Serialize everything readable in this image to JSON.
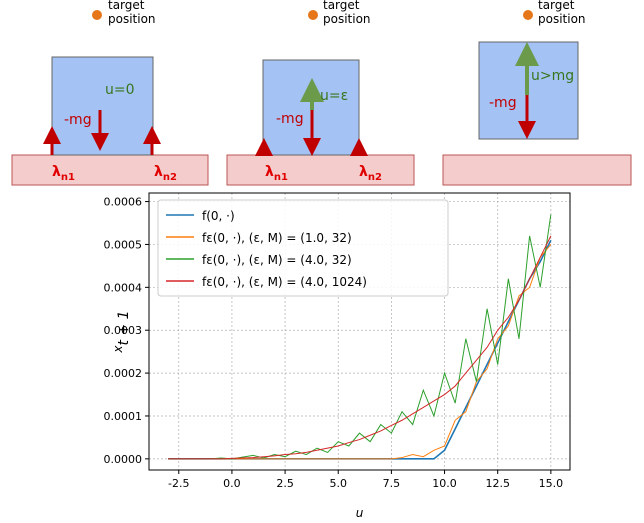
{
  "diagram": {
    "panels": [
      {
        "target": [
          "target",
          "position"
        ],
        "u": "u=0",
        "weight": "-mg",
        "contacts": [
          {
            "base": "λ",
            "sub": "n1"
          },
          {
            "base": "λ",
            "sub": "n2"
          }
        ]
      },
      {
        "target": [
          "target",
          "position"
        ],
        "u": "u=ε",
        "weight": "-mg",
        "contacts": [
          {
            "base": "λ",
            "sub": "n1"
          },
          {
            "base": "λ",
            "sub": "n2"
          }
        ]
      },
      {
        "target": [
          "target",
          "position"
        ],
        "u": "u>mg",
        "weight": "-mg"
      }
    ]
  },
  "chart_data": {
    "type": "line",
    "xlabel": "u",
    "ylabel": {
      "base": "x",
      "sub": "t + 1"
    },
    "x": [
      -3,
      -2.5,
      -2,
      -1.5,
      -1,
      -0.5,
      0,
      0.5,
      1,
      1.5,
      2,
      2.5,
      3,
      3.5,
      4,
      4.5,
      5,
      5.5,
      6,
      6.5,
      7,
      7.5,
      8,
      8.5,
      9,
      9.5,
      10,
      10.5,
      11,
      11.5,
      12,
      12.5,
      13,
      13.5,
      14,
      14.5,
      15
    ],
    "series": [
      {
        "name": "f(0, ·)",
        "color": "#1f77b4",
        "values": [
          0,
          0,
          0,
          0,
          0,
          0,
          0,
          0,
          0,
          0,
          0,
          0,
          0,
          0,
          0,
          0,
          0,
          0,
          0,
          0,
          0,
          0,
          0,
          0,
          0,
          0,
          2e-05,
          7e-05,
          0.00012,
          0.00017,
          0.00022,
          0.00027,
          0.00032,
          0.00037,
          0.00042,
          0.00046,
          0.00051
        ]
      },
      {
        "name": "fε(0, ·), (ε, M) = (1.0, 32)",
        "color": "#ff7f0e",
        "values": [
          0,
          0,
          0,
          0,
          0,
          0,
          0,
          0,
          0,
          0,
          0,
          0,
          0,
          0,
          0,
          0,
          0,
          0,
          0,
          0,
          0,
          0,
          3e-06,
          1e-05,
          5e-06,
          2e-05,
          3e-05,
          9e-05,
          0.00011,
          0.00018,
          0.00021,
          0.00028,
          0.00031,
          0.00038,
          0.0004,
          0.00047,
          0.0005
        ]
      },
      {
        "name": "fε(0, ·), (ε, M) = (4.0, 32)",
        "color": "#2ca02c",
        "values": [
          0,
          0,
          0,
          0,
          0,
          2e-06,
          0,
          4e-06,
          8e-06,
          2e-06,
          1e-05,
          5e-06,
          1.8e-05,
          1e-05,
          2.5e-05,
          1.5e-05,
          4e-05,
          3e-05,
          6e-05,
          4e-05,
          8e-05,
          6e-05,
          0.00011,
          8e-05,
          0.00016,
          0.0001,
          0.0002,
          0.00013,
          0.00028,
          0.00018,
          0.00035,
          0.00022,
          0.00042,
          0.00028,
          0.00052,
          0.0004,
          0.00057
        ]
      },
      {
        "name": "fε(0, ·), (ε, M) = (4.0, 1024)",
        "color": "#d62728",
        "values": [
          0,
          0,
          0,
          0,
          0,
          0,
          1e-06,
          2e-06,
          3e-06,
          5e-06,
          7e-06,
          1e-05,
          1.2e-05,
          1.5e-05,
          2e-05,
          2.5e-05,
          3e-05,
          3.8e-05,
          4.5e-05,
          5.5e-05,
          6.5e-05,
          7.8e-05,
          9e-05,
          0.000105,
          0.00012,
          0.000135,
          0.00015,
          0.00017,
          0.0002,
          0.00023,
          0.00026,
          0.0003,
          0.00033,
          0.00037,
          0.00042,
          0.00047,
          0.00052
        ]
      }
    ],
    "xlim": [
      -3.9,
      15.9
    ],
    "ylim": [
      -2.6e-05,
      0.00062
    ],
    "xticks": [
      -2.5,
      {
        "value": 0,
        "label": "0.0"
      },
      2.5,
      {
        "value": 5,
        "label": "5.0"
      },
      7.5,
      {
        "value": 10,
        "label": "10.0"
      },
      12.5,
      {
        "value": 15,
        "label": "15.0"
      }
    ],
    "yticks": [
      {
        "value": 0,
        "label": "0.0000"
      },
      {
        "value": 0.0001,
        "label": "0.0001"
      },
      {
        "value": 0.0002,
        "label": "0.0002"
      },
      {
        "value": 0.0003,
        "label": "0.0003"
      },
      {
        "value": 0.0004,
        "label": "0.0004"
      },
      {
        "value": 0.0005,
        "label": "0.0005"
      },
      {
        "value": 0.0006,
        "label": "0.0006"
      }
    ],
    "grid": true,
    "legend": "upper left"
  }
}
